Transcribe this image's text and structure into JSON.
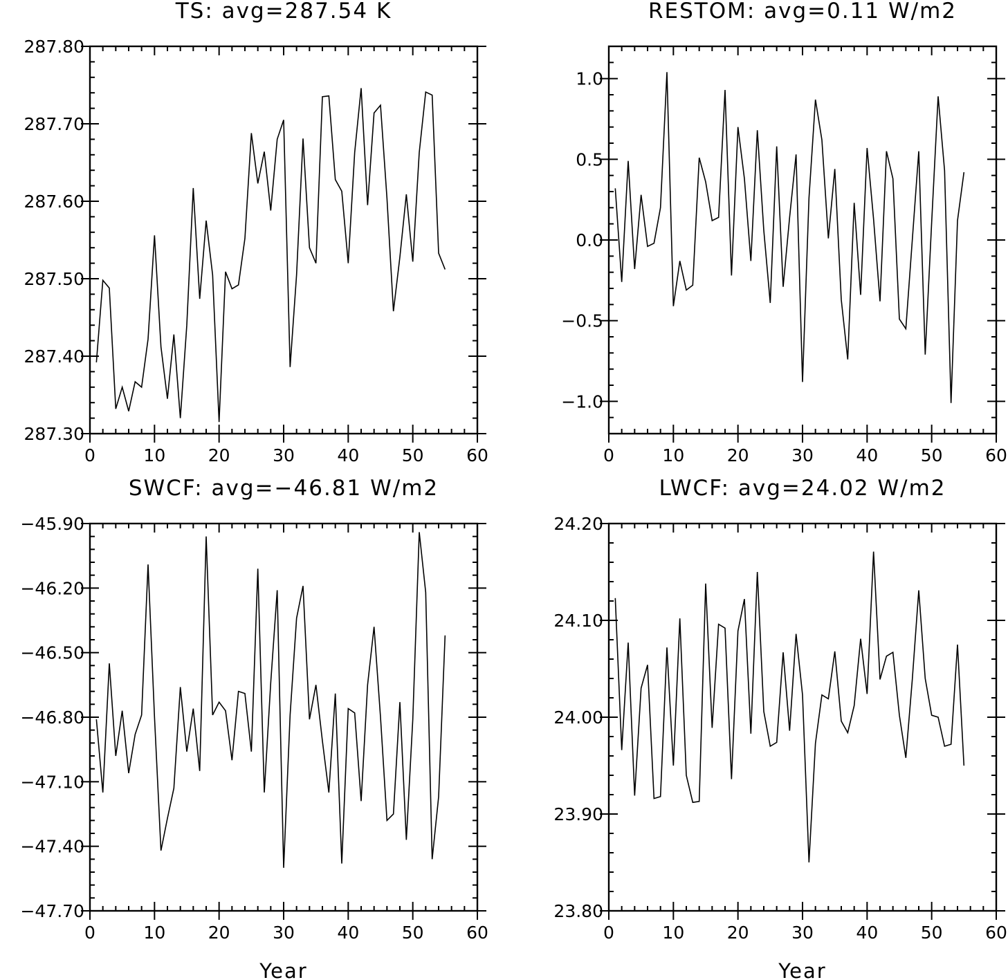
{
  "chart_data": [
    {
      "type": "line",
      "title": "TS: avg=287.54 K",
      "xlabel": "",
      "ylabel": "",
      "xlim": [
        0,
        60
      ],
      "ylim": [
        287.3,
        287.8
      ],
      "xticks": [
        0,
        10,
        20,
        30,
        40,
        50,
        60
      ],
      "yticks": [
        287.3,
        287.4,
        287.5,
        287.6,
        287.7,
        287.8
      ],
      "xtick_labels": [
        "0",
        "10",
        "20",
        "30",
        "40",
        "50",
        "60"
      ],
      "ytick_labels": [
        "287.30",
        "287.40",
        "287.50",
        "287.60",
        "287.70",
        "287.80"
      ],
      "grid": false,
      "x": [
        1,
        2,
        3,
        4,
        5,
        6,
        7,
        8,
        9,
        10,
        11,
        12,
        13,
        14,
        15,
        16,
        17,
        18,
        19,
        20,
        21,
        22,
        23,
        24,
        25,
        26,
        27,
        28,
        29,
        30,
        31,
        32,
        33,
        34,
        35,
        36,
        37,
        38,
        39,
        40,
        41,
        42,
        43,
        44,
        45,
        46,
        47,
        48,
        49,
        50,
        51,
        52,
        53,
        54,
        55
      ],
      "series": [
        {
          "values": [
            287.392,
            287.498,
            287.488,
            287.332,
            287.36,
            287.329,
            287.367,
            287.36,
            287.422,
            287.556,
            287.412,
            287.345,
            287.428,
            287.32,
            287.44,
            287.617,
            287.474,
            287.575,
            287.505,
            287.315,
            287.509,
            287.487,
            287.492,
            287.552,
            287.688,
            287.623,
            287.664,
            287.588,
            287.68,
            287.705,
            287.386,
            287.505,
            287.681,
            287.54,
            287.52,
            287.735,
            287.736,
            287.628,
            287.613,
            287.52,
            287.663,
            287.746,
            287.595,
            287.714,
            287.724,
            287.604,
            287.458,
            287.528,
            287.609,
            287.522,
            287.663,
            287.741,
            287.737,
            287.533,
            287.512
          ]
        }
      ]
    },
    {
      "type": "line",
      "title": "RESTOM: avg=0.11 W/m2",
      "xlabel": "",
      "ylabel": "",
      "xlim": [
        0,
        60
      ],
      "ylim": [
        -1.2,
        1.2
      ],
      "xticks": [
        0,
        10,
        20,
        30,
        40,
        50,
        60
      ],
      "yticks": [
        -1.0,
        -0.5,
        0.0,
        0.5,
        1.0
      ],
      "xtick_labels": [
        "0",
        "10",
        "20",
        "30",
        "40",
        "50",
        "60"
      ],
      "ytick_labels": [
        "−1.0",
        "−0.5",
        "0.0",
        "0.5",
        "1.0"
      ],
      "grid": false,
      "x": [
        1,
        2,
        3,
        4,
        5,
        6,
        7,
        8,
        9,
        10,
        11,
        12,
        13,
        14,
        15,
        16,
        17,
        18,
        19,
        20,
        21,
        22,
        23,
        24,
        25,
        26,
        27,
        28,
        29,
        30,
        31,
        32,
        33,
        34,
        35,
        36,
        37,
        38,
        39,
        40,
        41,
        42,
        43,
        44,
        45,
        46,
        47,
        48,
        49,
        50,
        51,
        52,
        53,
        54,
        55
      ],
      "series": [
        {
          "values": [
            0.32,
            -0.26,
            0.49,
            -0.18,
            0.28,
            -0.04,
            -0.02,
            0.2,
            1.04,
            -0.41,
            -0.13,
            -0.31,
            -0.28,
            0.51,
            0.36,
            0.12,
            0.14,
            0.93,
            -0.22,
            0.7,
            0.38,
            -0.13,
            0.68,
            0.06,
            -0.39,
            0.58,
            -0.29,
            0.14,
            0.53,
            -0.88,
            0.26,
            0.87,
            0.62,
            0.01,
            0.44,
            -0.37,
            -0.74,
            0.23,
            -0.34,
            0.57,
            0.13,
            -0.38,
            0.55,
            0.38,
            -0.49,
            -0.55,
            0.0,
            0.55,
            -0.71,
            0.11,
            0.89,
            0.43,
            -1.01,
            0.12,
            0.42
          ]
        }
      ]
    },
    {
      "type": "line",
      "title": "SWCF: avg=−46.81 W/m2",
      "xlabel": "Year",
      "ylabel": "",
      "xlim": [
        0,
        60
      ],
      "ylim": [
        -47.7,
        -45.9
      ],
      "xticks": [
        0,
        10,
        20,
        30,
        40,
        50,
        60
      ],
      "yticks": [
        -47.7,
        -47.4,
        -47.1,
        -46.8,
        -46.5,
        -46.2,
        -45.9
      ],
      "xtick_labels": [
        "0",
        "10",
        "20",
        "30",
        "40",
        "50",
        "60"
      ],
      "ytick_labels": [
        "−47.70",
        "−47.40",
        "−47.10",
        "−46.80",
        "−46.50",
        "−46.20",
        "−45.90"
      ],
      "grid": false,
      "x": [
        1,
        2,
        3,
        4,
        5,
        6,
        7,
        8,
        9,
        10,
        11,
        12,
        13,
        14,
        15,
        16,
        17,
        18,
        19,
        20,
        21,
        22,
        23,
        24,
        25,
        26,
        27,
        28,
        29,
        30,
        31,
        32,
        33,
        34,
        35,
        36,
        37,
        38,
        39,
        40,
        41,
        42,
        43,
        44,
        45,
        46,
        47,
        48,
        49,
        50,
        51,
        52,
        53,
        54,
        55
      ],
      "series": [
        {
          "values": [
            -46.81,
            -47.15,
            -46.55,
            -46.98,
            -46.77,
            -47.06,
            -46.88,
            -46.79,
            -46.09,
            -46.8,
            -47.42,
            -47.27,
            -47.13,
            -46.66,
            -46.96,
            -46.76,
            -47.05,
            -45.96,
            -46.79,
            -46.73,
            -46.77,
            -47.0,
            -46.68,
            -46.69,
            -46.96,
            -46.11,
            -47.15,
            -46.64,
            -46.21,
            -47.5,
            -46.79,
            -46.34,
            -46.19,
            -46.81,
            -46.65,
            -46.91,
            -47.15,
            -46.69,
            -47.48,
            -46.76,
            -46.78,
            -47.19,
            -46.65,
            -46.38,
            -46.8,
            -47.28,
            -47.25,
            -46.73,
            -47.37,
            -46.81,
            -45.94,
            -46.22,
            -47.46,
            -47.17,
            -46.42
          ]
        }
      ]
    },
    {
      "type": "line",
      "title": "LWCF: avg=24.02 W/m2",
      "xlabel": "Year",
      "ylabel": "",
      "xlim": [
        0,
        60
      ],
      "ylim": [
        23.8,
        24.2
      ],
      "xticks": [
        0,
        10,
        20,
        30,
        40,
        50,
        60
      ],
      "yticks": [
        23.8,
        23.9,
        24.0,
        24.1,
        24.2
      ],
      "xtick_labels": [
        "0",
        "10",
        "20",
        "30",
        "40",
        "50",
        "60"
      ],
      "ytick_labels": [
        "23.80",
        "23.90",
        "24.00",
        "24.10",
        "24.20"
      ],
      "grid": false,
      "x": [
        1,
        2,
        3,
        4,
        5,
        6,
        7,
        8,
        9,
        10,
        11,
        12,
        13,
        14,
        15,
        16,
        17,
        18,
        19,
        20,
        21,
        22,
        23,
        24,
        25,
        26,
        27,
        28,
        29,
        30,
        31,
        32,
        33,
        34,
        35,
        36,
        37,
        38,
        39,
        40,
        41,
        42,
        43,
        44,
        45,
        46,
        47,
        48,
        49,
        50,
        51,
        52,
        53,
        54,
        55
      ],
      "series": [
        {
          "values": [
            24.123,
            23.966,
            24.077,
            23.919,
            24.03,
            24.054,
            23.916,
            23.918,
            24.072,
            23.95,
            24.102,
            23.94,
            23.912,
            23.913,
            24.138,
            23.989,
            24.096,
            24.092,
            23.936,
            24.089,
            24.122,
            23.983,
            24.15,
            24.006,
            23.97,
            23.974,
            24.067,
            23.986,
            24.086,
            24.023,
            23.85,
            23.973,
            24.023,
            24.019,
            24.068,
            23.996,
            23.984,
            24.012,
            24.081,
            24.024,
            24.171,
            24.039,
            24.063,
            24.067,
            24.002,
            23.958,
            24.039,
            24.131,
            24.04,
            24.002,
            24.0,
            23.97,
            23.972,
            24.075,
            23.95
          ]
        }
      ]
    }
  ]
}
